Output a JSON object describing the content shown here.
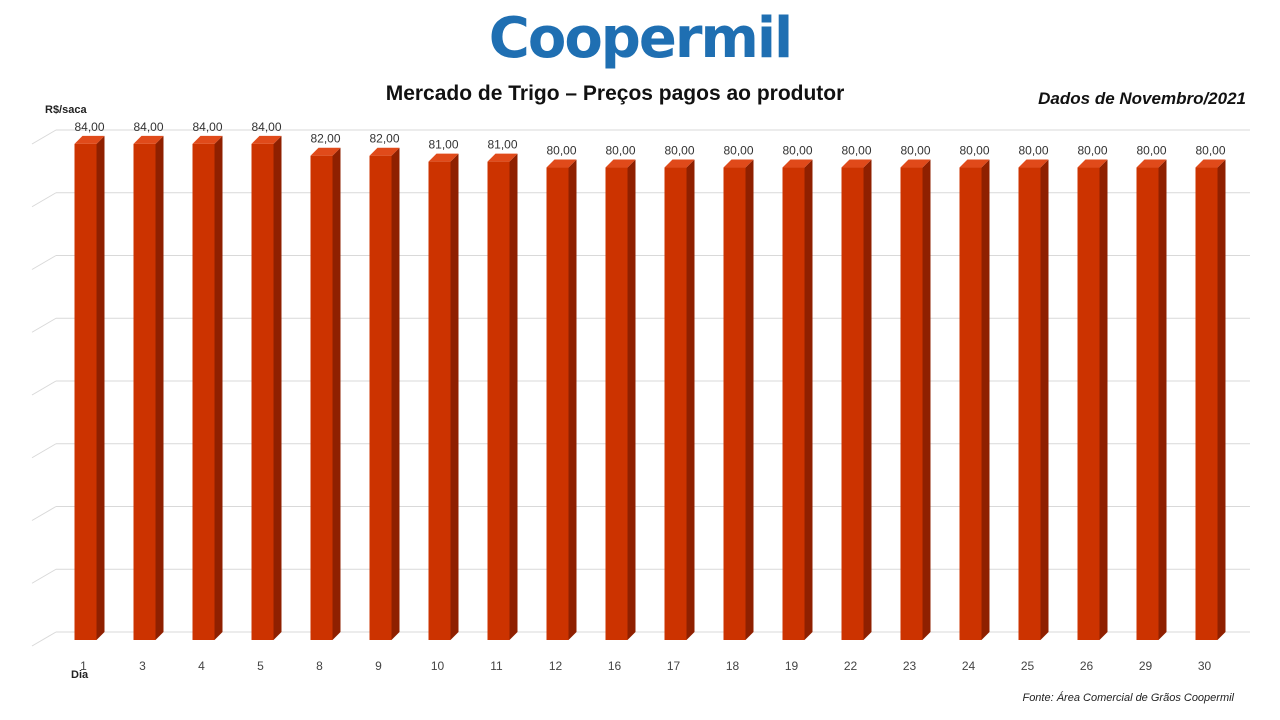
{
  "header": {
    "logo_text": "Coopermil",
    "title": "Mercado de Trigo – Preços pagos ao produtor",
    "period": "Dados de Novembro/2021",
    "source": "Fonte: Área Comercial  de Grãos Coopermil"
  },
  "colors": {
    "bar_front": "#cc3300",
    "bar_side": "#8f2000",
    "bar_top": "#e04a1a",
    "grid": "#d9d9d9",
    "logo": "#1f6fb2"
  },
  "chart_data": {
    "type": "bar",
    "ylabel": "R$/saca",
    "xlabel": "Dia",
    "categories": [
      "1",
      "3",
      "4",
      "5",
      "8",
      "9",
      "10",
      "11",
      "12",
      "16",
      "17",
      "18",
      "19",
      "22",
      "23",
      "24",
      "25",
      "26",
      "29",
      "30"
    ],
    "values": [
      84,
      84,
      84,
      84,
      82,
      82,
      81,
      81,
      80,
      80,
      80,
      80,
      80,
      80,
      80,
      80,
      80,
      80,
      80,
      80
    ],
    "data_labels": [
      "84,00",
      "84,00",
      "84,00",
      "84,00",
      "82,00",
      "82,00",
      "81,00",
      "81,00",
      "80,00",
      "80,00",
      "80,00",
      "80,00",
      "80,00",
      "80,00",
      "80,00",
      "80,00",
      "80,00",
      "80,00",
      "80,00",
      "80,00"
    ],
    "ylim": [
      0,
      85
    ],
    "grid": true,
    "legend": "none"
  }
}
